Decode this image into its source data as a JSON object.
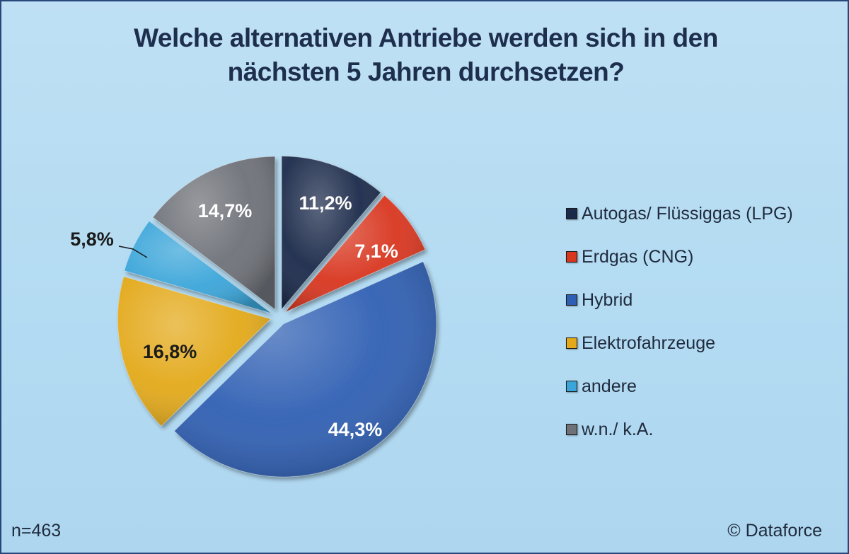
{
  "chart_data": {
    "type": "pie",
    "title_lines": [
      "Welche alternativen Antriebe werden sich in den",
      "nächsten 5 Jahren durchsetzen?"
    ],
    "slices": [
      {
        "name": "Autogas/ Flüssiggas (LPG)",
        "value": 11.2,
        "label": "11,2%",
        "color": "#1b2a4a"
      },
      {
        "name": "Erdgas (CNG)",
        "value": 7.1,
        "label": "7,1%",
        "color": "#d8361f"
      },
      {
        "name": "Hybrid",
        "value": 44.3,
        "label": "44,3%",
        "color": "#2f5fb3"
      },
      {
        "name": "Elektrofahrzeuge",
        "value": 16.8,
        "label": "16,8%",
        "color": "#e3a91a"
      },
      {
        "name": "andere",
        "value": 5.8,
        "label": "5,8%",
        "color": "#3aa5d9"
      },
      {
        "name": "w.n./ k.A.",
        "value": 14.7,
        "label": "14,7%",
        "color": "#6e7178"
      }
    ],
    "legend_position": "right"
  },
  "footer": {
    "sample_size": "n=463",
    "copyright": "© Dataforce"
  }
}
